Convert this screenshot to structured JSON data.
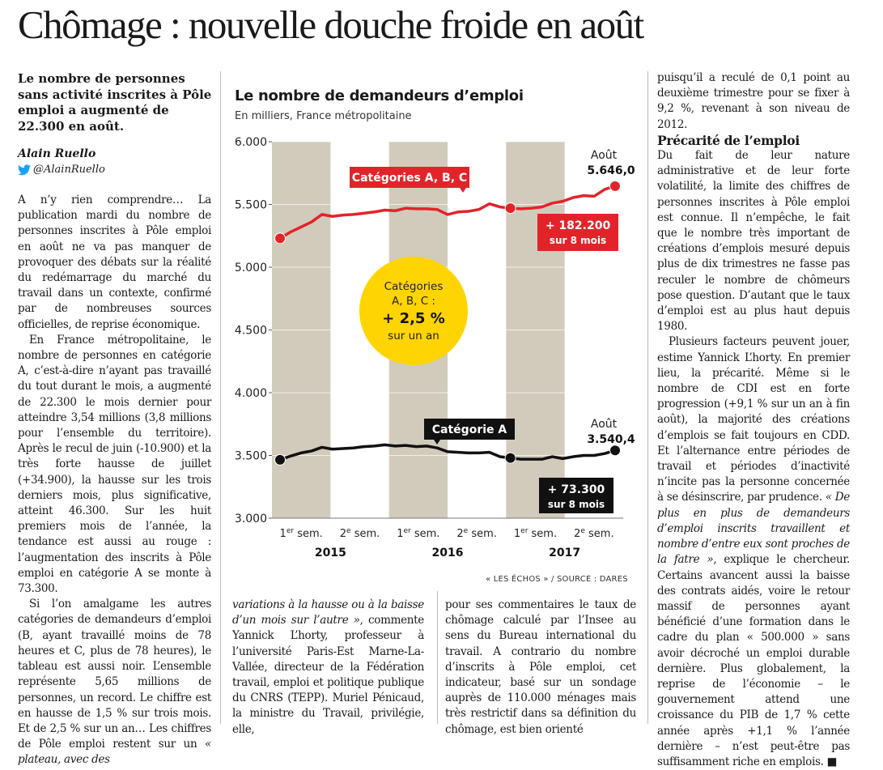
{
  "article": {
    "headline": "Chômage : nouvelle douche froide en août",
    "lead": "Le nombre de personnes sans activité inscrites à Pôle emploi a augmenté de 22.300 en août.",
    "author": "Alain Ruello",
    "twitter_handle": "@AlainRuello",
    "col1": {
      "p1": "A n’y rien comprendre… La publication mardi du nombre de personnes inscrites à Pôle emploi en août ne va pas manquer de provoquer des débats sur la réalité du redémarrage du marché du travail dans un contexte, confirmé par de nombreuses sources officielles, de reprise économique.",
      "p2": "En France métropolitaine, le nombre de personnes en catégorie A, c’est-à-dire n’ayant pas travaillé du tout durant le mois, a augmenté de 22.300 le mois dernier pour atteindre 3,54 millions (3,8 millions pour l’ensemble du territoire). Après le recul de juin (-10.900) et la très forte hausse de juillet (+34.900), la hausse sur les trois derniers mois, plus significative, atteint 46.300. Sur les huit premiers mois de l’année, la tendance est aussi au rouge : l’augmentation des inscrits à Pôle emploi en catégorie A se monte à 73.300.",
      "p3a": "Si l’on amalgame les autres catégories de demandeurs d’emploi (B, ayant travaillé moins de 78 heures et C, plus de 78 heures), le tableau est aussi noir. L’ensemble représente 5,65 millions de personnes, un record. Le chiffre est en hausse de 1,5 % sur trois mois. Et de 2,5 % sur un an… Les chiffres de Pôle emploi restent sur un",
      "p3b": "« plateau, avec des"
    },
    "col2": {
      "italic": "variations à la hausse ou à la baisse d’un mois sur l’autre »",
      "text": ", commente Yannick L’horty, professeur à l’université Paris-Est Marne-La-Vallée, directeur de la Fédération travail, emploi et politique publique du CNRS (TEPP). Muriel Pénicaud, la ministre du Travail, privilégie, elle,"
    },
    "col3": {
      "text": "pour ses commentaires le taux de chômage calculé par l’Insee au sens du Bureau international du travail. A contrario du nombre d’inscrits à Pôle emploi, cet indicateur, basé sur un sondage auprès de 110.000 ménages mais très restrictif dans sa définition du chômage, est bien orienté"
    },
    "col4": {
      "p1": "puisqu’il a reculé de 0,1 point au deuxième trimestre pour se fixer à 9,2 %, revenant à son niveau de 2012.",
      "subhead": "Précarité de l’emploi",
      "p2": "Du fait de leur nature administrative et de leur forte volatilité, la limite des chiffres de personnes inscrites à Pôle emploi est connue. Il n’empêche, le fait que le nombre très important de créations d’emplois mesuré depuis plus de dix trimestres ne fasse pas reculer le nombre de chômeurs pose question. D’autant que le taux d’emploi est au plus haut depuis 1980.",
      "p3a": "Plusieurs facteurs peuvent jouer, estime Yannick L’horty. En premier lieu, la précarité. Même si le nombre de CDI est en forte progression (+9,1 % sur un an à fin août), la majorité des créations d’emplois se fait toujours en CDD. Et l’alternance entre périodes de travail et périodes d’inactivité n’incite pas la personne concernée à se désinscrire, par prudence.",
      "p3_italic": "« De plus en plus de demandeurs d’emploi inscrits travaillent et nombre d’entre eux sont proches de la fatre »",
      "p3b": ", explique le chercheur. Certains avancent aussi la baisse des contrats aidés, voire le retour massif de personnes ayant bénéficié d’une formation dans le cadre du plan « 500.000 » sans avoir décroché un emploi durable dernière. Plus globalement, la reprise de l’économie – le gouvernement attend une croissance du PIB de 1,7 % cette année après +1,1 % l’année dernière – n’est peut-être pas suffisamment riche en emplois. ■"
    }
  },
  "chart": {
    "title": "Le nombre de demandeurs d’emploi",
    "subtitle": "En milliers, France métropolitaine",
    "source": "« LES ÉCHOS » / SOURCE : DARES"
  },
  "colors": {
    "red": "#e3232a",
    "black": "#111111",
    "yellow": "#ffd400",
    "band": "#d1cbbb",
    "twitter": "#1da1f2"
  },
  "chart_data": {
    "type": "line",
    "title": "Le nombre de demandeurs d’emploi",
    "subtitle": "En milliers, France métropolitaine",
    "ylim": [
      3000,
      6000
    ],
    "yticks": [
      "6.000",
      "5.500",
      "5.000",
      "4.500",
      "4.000",
      "3.500",
      "3.000"
    ],
    "ytick_values": [
      6000,
      5500,
      5000,
      4500,
      4000,
      3500,
      3000
    ],
    "semester_labels": [
      {
        "sup": "er",
        "num": "1",
        "text": " sem."
      },
      {
        "sup": "e",
        "num": "2",
        "text": " sem."
      },
      {
        "sup": "er",
        "num": "1",
        "text": " sem."
      },
      {
        "sup": "e",
        "num": "2",
        "text": " sem."
      },
      {
        "sup": "er",
        "num": "1",
        "text": " sem."
      },
      {
        "sup": "e",
        "num": "2",
        "text": " sem."
      }
    ],
    "years": [
      "2015",
      "2016",
      "2017"
    ],
    "x_months": 33,
    "series": [
      {
        "name": "Catégories A, B, C",
        "color": "#e3232a",
        "values": [
          5230,
          5280,
          5320,
          5360,
          5420,
          5405,
          5415,
          5420,
          5430,
          5440,
          5455,
          5450,
          5470,
          5465,
          5465,
          5460,
          5420,
          5440,
          5445,
          5460,
          5505,
          5480,
          5470,
          5465,
          5470,
          5480,
          5510,
          5525,
          5555,
          5570,
          5565,
          5620,
          5646
        ],
        "markers": [
          0,
          22,
          32
        ],
        "label": "Catégories A, B, C",
        "end_label": "Août",
        "end_value": "5.646,0",
        "change_line1": "+ 182.200",
        "change_line2": "sur 8 mois"
      },
      {
        "name": "Catégorie A",
        "color": "#111111",
        "values": [
          3465,
          3495,
          3520,
          3535,
          3565,
          3550,
          3555,
          3560,
          3570,
          3575,
          3585,
          3575,
          3580,
          3570,
          3575,
          3560,
          3530,
          3525,
          3520,
          3520,
          3525,
          3490,
          3480,
          3470,
          3470,
          3470,
          3490,
          3475,
          3490,
          3500,
          3500,
          3515,
          3540
        ],
        "markers": [
          0,
          22,
          32
        ],
        "label": "Catégorie A",
        "end_label": "Août",
        "end_value": "3.540,4",
        "change_line1": "+ 73.300",
        "change_line2": "sur 8 mois"
      }
    ],
    "annotation": {
      "line1": "Catégories",
      "line2": "A, B, C :",
      "line3": "+ 2,5 %",
      "line4": "sur un an"
    }
  }
}
